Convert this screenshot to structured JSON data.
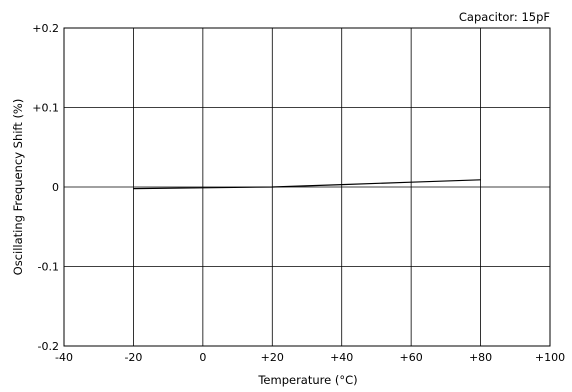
{
  "chart_data": {
    "type": "line",
    "title": "",
    "annotation": "Capacitor: 15pF",
    "xlabel": "Temperature (°C)",
    "ylabel": "Oscillating Frequency Shift (%)",
    "xlim": [
      -40,
      100
    ],
    "ylim": [
      -0.2,
      0.2
    ],
    "x_ticks": [
      -40,
      -20,
      0,
      20,
      40,
      60,
      80,
      100
    ],
    "x_tick_labels": [
      "-40",
      "-20",
      "0",
      "+20",
      "+40",
      "+60",
      "+80",
      "+100"
    ],
    "y_ticks": [
      0.2,
      0.1,
      0,
      -0.1,
      -0.2
    ],
    "y_tick_labels": [
      "+0.2",
      "+0.1",
      "0",
      "-0.1",
      "-0.2"
    ],
    "grid": true,
    "series": [
      {
        "x": [
          -20,
          0,
          20,
          40,
          60,
          80
        ],
        "y": [
          -0.002,
          -0.001,
          0.0,
          0.003,
          0.006,
          0.009
        ]
      }
    ]
  }
}
